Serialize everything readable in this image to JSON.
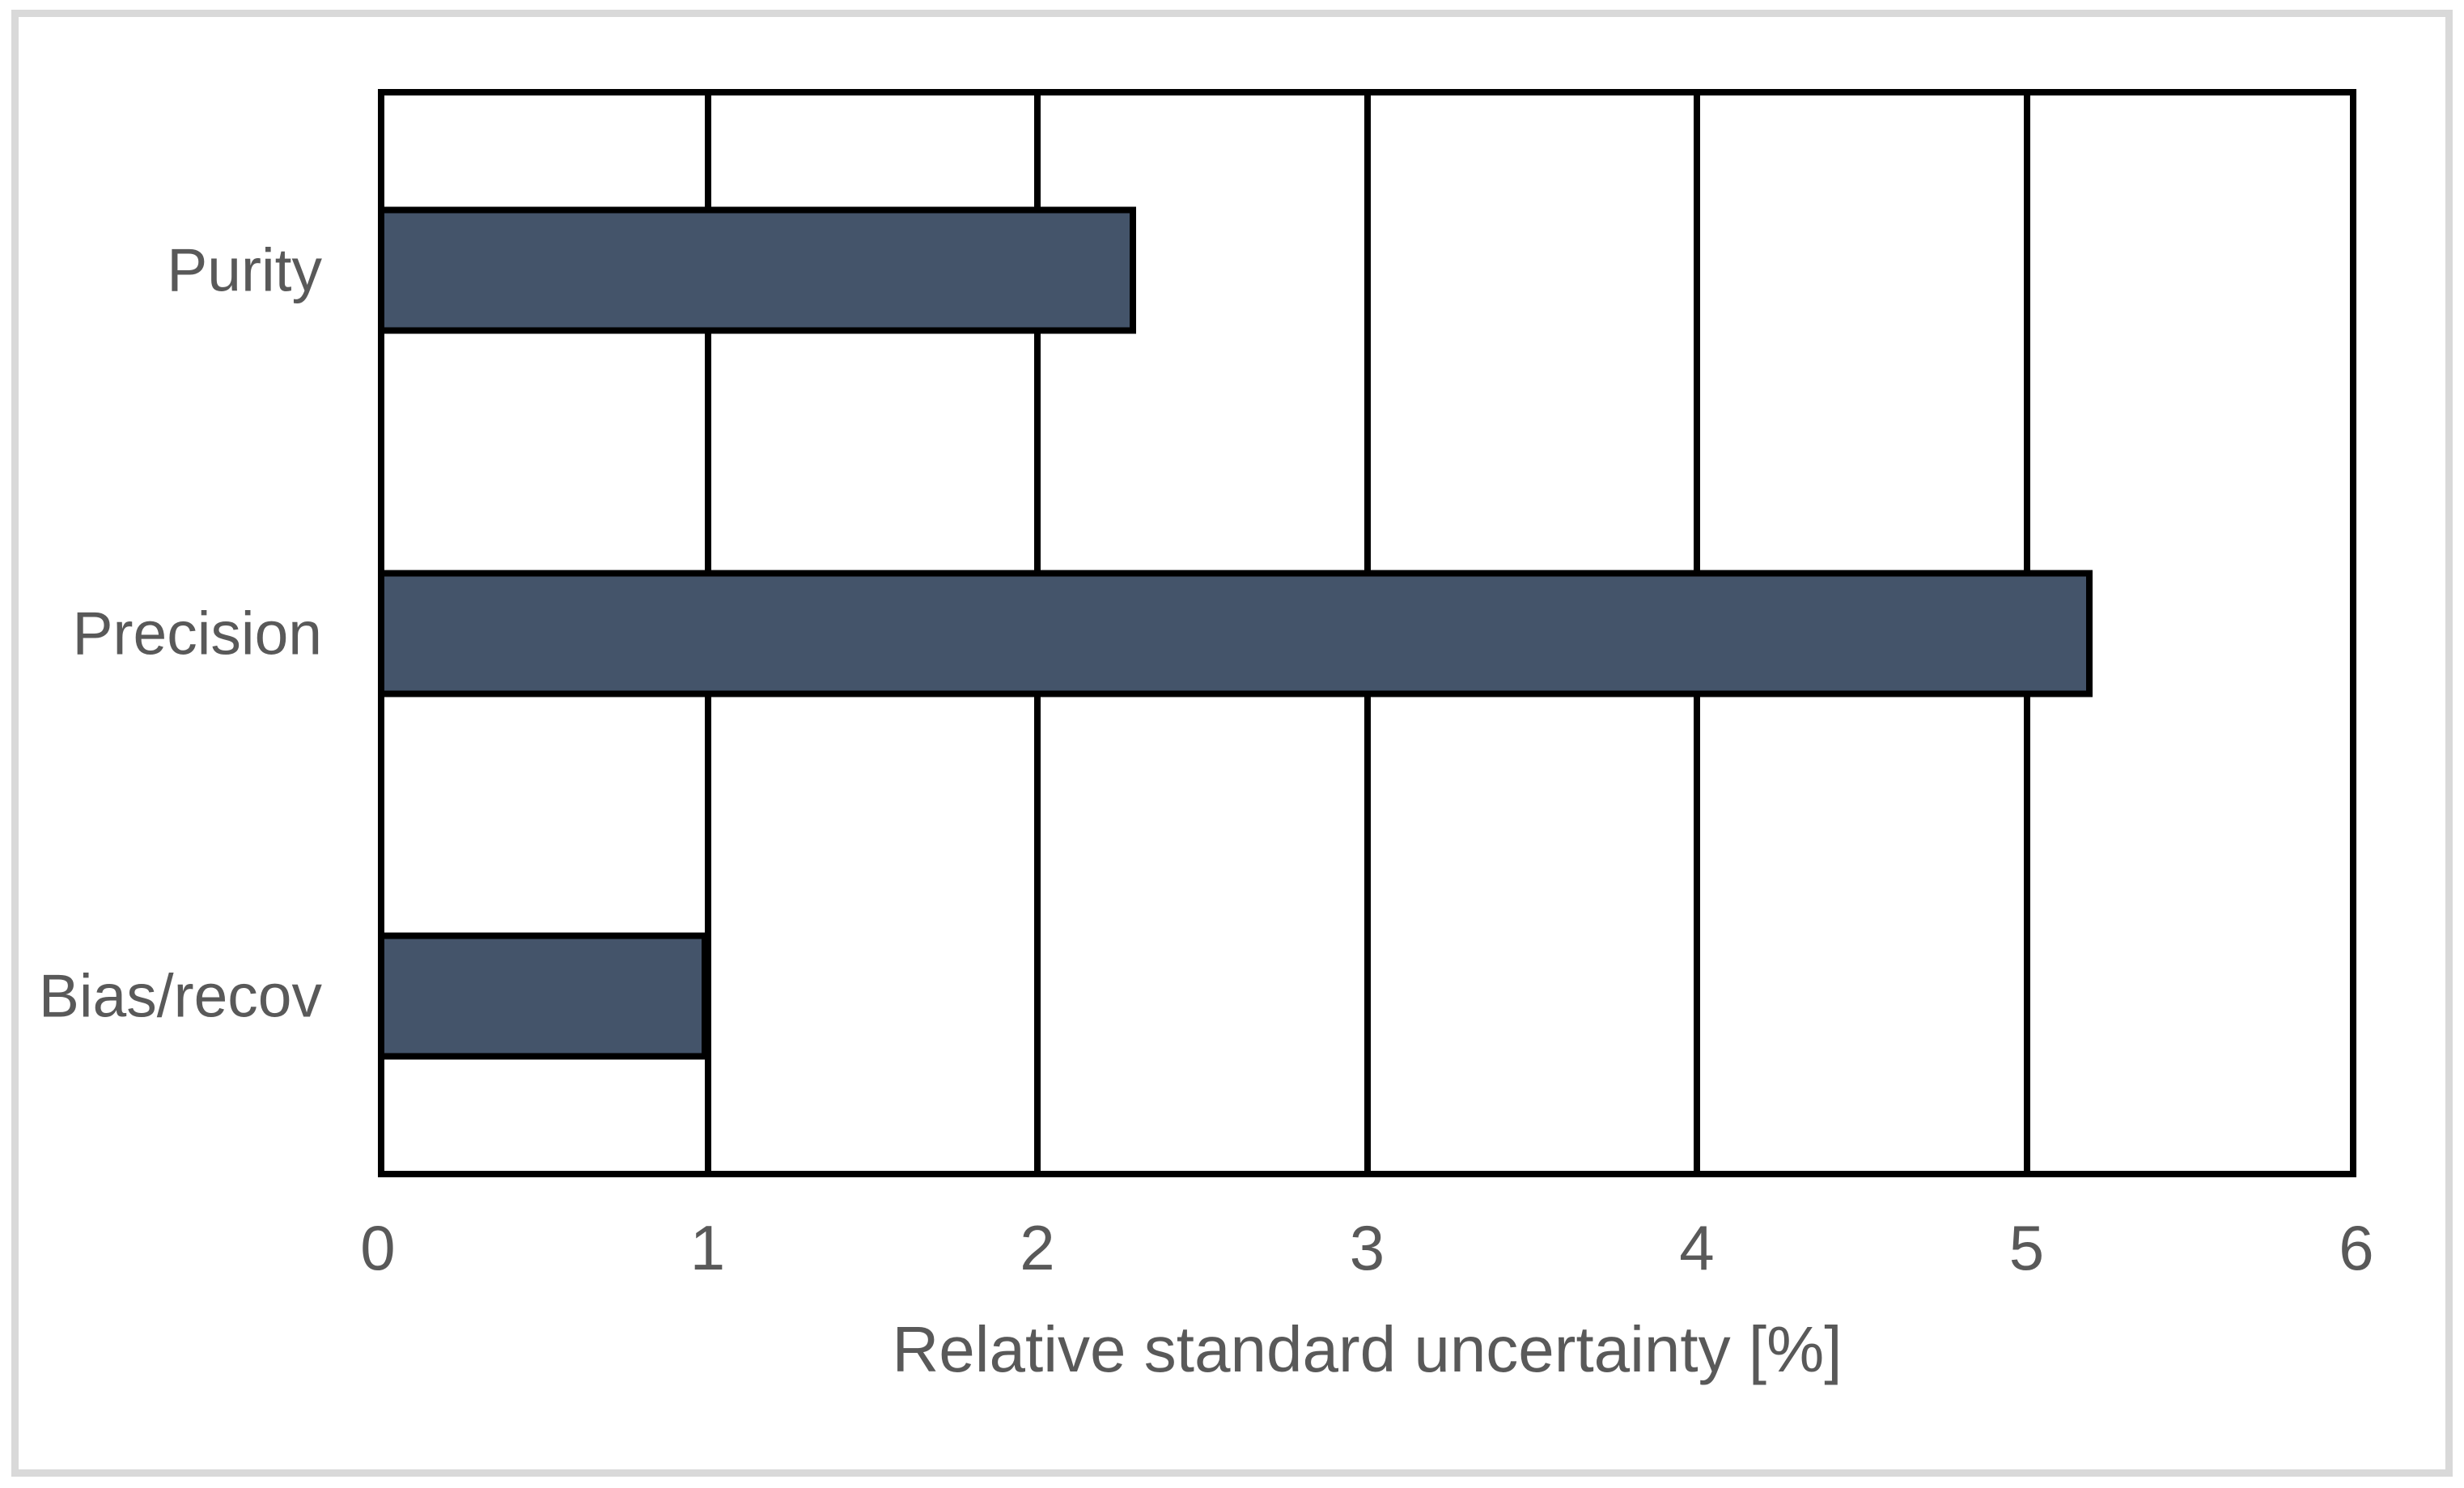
{
  "figure": {
    "background_color": "#FFFFFF",
    "frame_border_color": "#D9D9D9"
  },
  "chart_data": {
    "type": "bar",
    "orientation": "horizontal",
    "categories": [
      "Purity",
      "Precision",
      "Bias/recov"
    ],
    "values": [
      2.3,
      5.2,
      1.0
    ],
    "title": "",
    "xlabel": "Relative standard uncertainty [%]",
    "ylabel": "",
    "xlim": [
      0,
      6
    ],
    "x_ticks": [
      0,
      1,
      2,
      3,
      4,
      5,
      6
    ],
    "grid": "vertical major gridlines on",
    "legend": "none",
    "bar_fill_color": "#44546A",
    "bar_border_color": "#000000",
    "plot_border_color": "#000000",
    "gridline_color": "#000000",
    "text_color": "#595959"
  }
}
